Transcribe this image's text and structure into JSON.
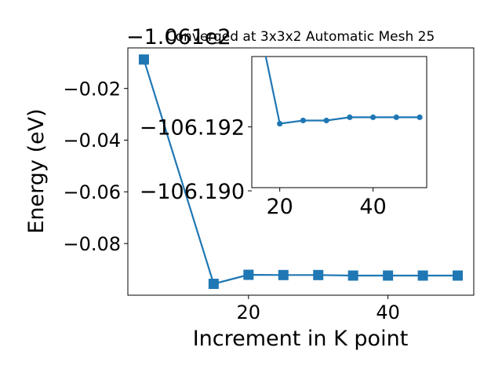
{
  "chart_data": [
    {
      "type": "line",
      "title": "Converged at 3x3x2 Automatic Mesh 25",
      "xlabel": "Increment in K point",
      "ylabel": "Energy (eV)",
      "offset_text": "−1.061e2",
      "xlim": [
        2.7,
        52.3
      ],
      "ylim": [
        -0.1,
        -0.0043
      ],
      "x_ticks": [
        20,
        40
      ],
      "x_tick_labels": [
        "20",
        "40"
      ],
      "y_ticks": [
        -0.02,
        -0.04,
        -0.06,
        -0.08
      ],
      "y_tick_labels": [
        "−0.02",
        "−0.04",
        "−0.06",
        "−0.08"
      ],
      "marker": "square",
      "color": "#1f77b4",
      "series": [
        {
          "x": [
            5,
            15,
            20,
            25,
            30,
            35,
            40,
            45,
            50
          ],
          "values": [
            -0.0088,
            -0.0956,
            -0.0921,
            -0.0922,
            -0.0922,
            -0.0924,
            -0.0924,
            -0.0924,
            -0.0924
          ]
        }
      ]
    },
    {
      "type": "line",
      "inset": true,
      "xlim": [
        14,
        51.5
      ],
      "ylim": [
        -106.1901,
        -106.1942
      ],
      "x_ticks": [
        20,
        40
      ],
      "x_tick_labels": [
        "20",
        "40"
      ],
      "y_ticks": [
        -106.192,
        -106.19
      ],
      "y_tick_labels": [
        "−106.192",
        "−106.190"
      ],
      "marker": "circle",
      "color": "#1f77b4",
      "series": [
        {
          "x": [
            15,
            20,
            25,
            30,
            35,
            40,
            45,
            50
          ],
          "values": [
            -106.1956,
            -106.1921,
            -106.1922,
            -106.1922,
            -106.1923,
            -106.1923,
            -106.1923,
            -106.1923
          ]
        }
      ]
    }
  ]
}
